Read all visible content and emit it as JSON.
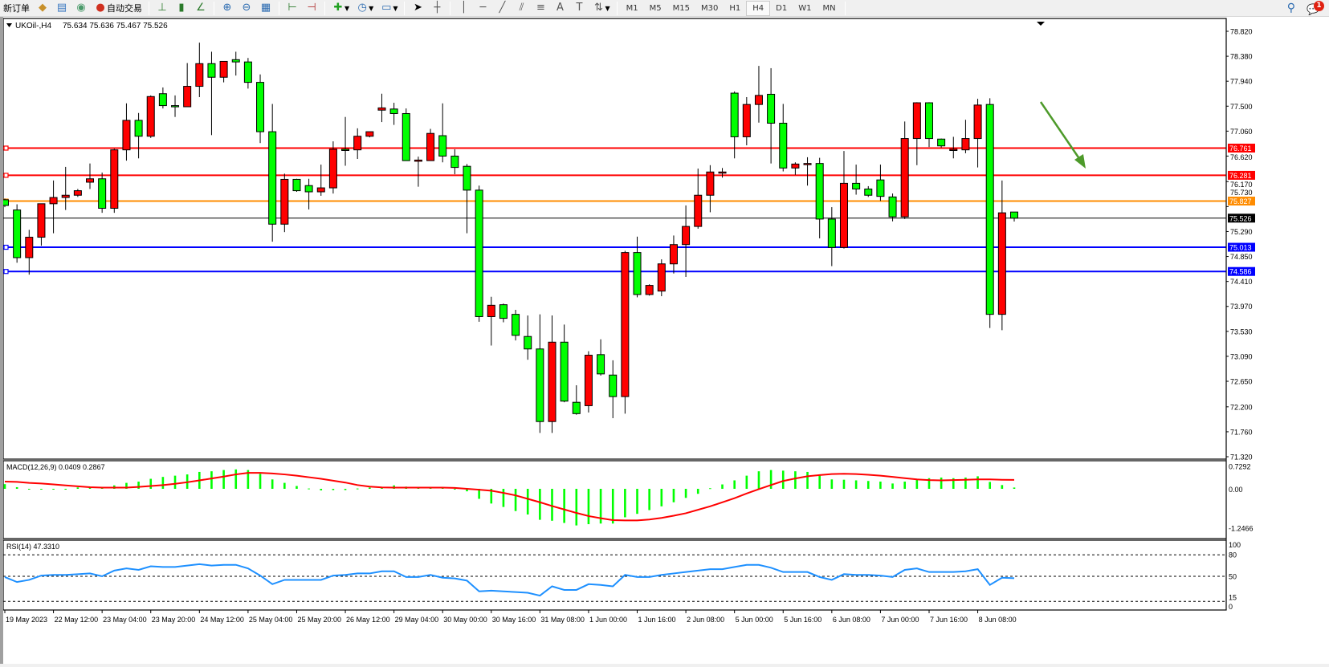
{
  "toolbar": {
    "items": [
      {
        "label": "新订单",
        "icon": "new-order-icon"
      },
      {
        "label": "",
        "icon": "history-center-icon"
      },
      {
        "label": "",
        "icon": "market-watch-icon"
      },
      {
        "label": "",
        "icon": "signals-icon"
      },
      {
        "label": "自动交易",
        "icon": "auto-trading-icon"
      }
    ],
    "tools": [
      "bar-chart-icon",
      "candlestick-icon",
      "line-chart-icon",
      "zoom-in-icon",
      "zoom-out-icon",
      "tile-windows-icon",
      "chart-shift-icon",
      "autoscroll-icon",
      "indicators-icon",
      "periods-icon",
      "templates-icon",
      "cursor-icon",
      "crosshair-icon",
      "vertical-line-icon",
      "horizontal-line-icon",
      "trendline-icon",
      "equidistant-channel-icon",
      "fibonacci-icon",
      "text-icon",
      "text-label-icon",
      "arrows-icon"
    ],
    "timeframes": [
      "M1",
      "M5",
      "M15",
      "M30",
      "H1",
      "H4",
      "D1",
      "W1",
      "MN"
    ],
    "active_timeframe": "H4",
    "notification_count": "1"
  },
  "chart": {
    "symbol_info": "UKOil-,H4",
    "ohlc_text": "75.634 75.636 75.467 75.526",
    "colors": {
      "up": "#ff0000",
      "down": "#00ff00",
      "macd_hist": "#00ff00",
      "macd_signal": "#ff0000",
      "rsi": "#1e90ff",
      "arrow": "#4d9a2a"
    },
    "price_axis": [
      "78.820",
      "78.380",
      "77.940",
      "77.500",
      "77.060",
      "76.620",
      "76.170",
      "75.730",
      "75.290",
      "74.850",
      "74.410",
      "73.970",
      "73.530",
      "73.090",
      "72.650",
      "72.200",
      "71.760",
      "71.320"
    ],
    "levels": [
      {
        "price": "76.761",
        "color": "#ff0000"
      },
      {
        "price": "76.281",
        "color": "#ff0000"
      },
      {
        "price": "75.827",
        "color": "#ff8c00"
      },
      {
        "price": "75.013",
        "color": "#0000ff"
      },
      {
        "price": "74.586",
        "color": "#0000ff"
      }
    ],
    "current_price": "75.526",
    "time_axis": [
      "19 May 2023",
      "22 May 12:00",
      "23 May 04:00",
      "23 May 20:00",
      "24 May 12:00",
      "25 May 04:00",
      "25 May 20:00",
      "26 May 12:00",
      "29 May 04:00",
      "30 May 00:00",
      "30 May 16:00",
      "31 May 08:00",
      "1 Jun 00:00",
      "1 Jun 16:00",
      "2 Jun 08:00",
      "5 Jun 00:00",
      "5 Jun 16:00",
      "6 Jun 08:00",
      "7 Jun 00:00",
      "7 Jun 16:00",
      "8 Jun 08:00"
    ]
  },
  "chart_data": {
    "type": "candlestick",
    "ylim": [
      71.32,
      78.82
    ],
    "ohlc": [
      [
        75.85,
        75.87,
        75.72,
        75.75
      ],
      [
        75.67,
        75.77,
        74.74,
        74.83
      ],
      [
        74.83,
        75.32,
        74.53,
        75.19
      ],
      [
        75.19,
        75.78,
        75.04,
        75.78
      ],
      [
        75.78,
        76.19,
        75.26,
        75.89
      ],
      [
        75.89,
        76.43,
        75.67,
        75.93
      ],
      [
        75.93,
        76.04,
        75.9,
        76.01
      ],
      [
        76.16,
        76.49,
        76.04,
        76.22
      ],
      [
        76.22,
        76.33,
        75.62,
        75.7
      ],
      [
        75.7,
        76.75,
        75.62,
        76.73
      ],
      [
        76.73,
        77.55,
        76.54,
        77.25
      ],
      [
        77.25,
        77.38,
        76.58,
        76.97
      ],
      [
        76.97,
        77.69,
        76.94,
        77.67
      ],
      [
        77.72,
        77.83,
        77.46,
        77.51
      ],
      [
        77.51,
        77.69,
        77.31,
        77.5
      ],
      [
        77.49,
        78.26,
        77.49,
        77.85
      ],
      [
        77.85,
        78.62,
        77.66,
        78.25
      ],
      [
        78.25,
        78.46,
        76.99,
        78.01
      ],
      [
        78.01,
        78.29,
        77.92,
        78.29
      ],
      [
        78.32,
        78.46,
        78.04,
        78.28
      ],
      [
        78.28,
        78.35,
        77.81,
        77.92
      ],
      [
        77.92,
        78.06,
        76.85,
        77.05
      ],
      [
        77.05,
        77.54,
        75.11,
        75.42
      ],
      [
        75.42,
        76.31,
        75.28,
        76.21
      ],
      [
        76.21,
        76.22,
        75.99,
        76.01
      ],
      [
        76.1,
        76.22,
        75.68,
        75.99
      ],
      [
        75.99,
        76.47,
        75.92,
        76.06
      ],
      [
        76.06,
        76.88,
        75.96,
        76.74
      ],
      [
        76.74,
        77.31,
        76.45,
        76.73
      ],
      [
        76.73,
        77.11,
        76.57,
        76.97
      ],
      [
        76.97,
        77.05,
        76.95,
        77.05
      ],
      [
        77.43,
        77.72,
        77.22,
        77.47
      ],
      [
        77.45,
        77.56,
        77.17,
        77.37
      ],
      [
        77.37,
        77.46,
        76.54,
        76.54
      ],
      [
        76.55,
        76.61,
        76.08,
        76.55
      ],
      [
        76.54,
        77.1,
        76.54,
        77.02
      ],
      [
        76.98,
        77.55,
        76.51,
        76.62
      ],
      [
        76.62,
        76.74,
        76.3,
        76.42
      ],
      [
        76.44,
        76.48,
        75.26,
        76.02
      ],
      [
        76.02,
        76.1,
        73.7,
        73.79
      ],
      [
        73.79,
        74.14,
        73.28,
        73.99
      ],
      [
        74.0,
        74.02,
        73.69,
        73.76
      ],
      [
        73.83,
        73.91,
        73.37,
        73.46
      ],
      [
        73.44,
        73.81,
        73.03,
        73.22
      ],
      [
        73.22,
        73.83,
        71.74,
        71.94
      ],
      [
        71.94,
        73.81,
        71.74,
        73.34
      ],
      [
        73.34,
        73.65,
        72.28,
        72.3
      ],
      [
        72.28,
        72.58,
        72.06,
        72.08
      ],
      [
        72.22,
        73.18,
        72.1,
        73.11
      ],
      [
        73.12,
        73.39,
        72.75,
        72.78
      ],
      [
        72.76,
        73.02,
        72.0,
        72.38
      ],
      [
        72.38,
        74.95,
        72.08,
        74.92
      ],
      [
        74.92,
        75.2,
        74.13,
        74.18
      ],
      [
        74.18,
        74.36,
        74.16,
        74.34
      ],
      [
        74.24,
        74.8,
        74.15,
        74.72
      ],
      [
        74.72,
        75.22,
        74.55,
        75.06
      ],
      [
        75.06,
        75.75,
        74.49,
        75.38
      ],
      [
        75.38,
        76.4,
        75.34,
        75.93
      ],
      [
        75.93,
        76.46,
        75.63,
        76.34
      ],
      [
        76.34,
        76.41,
        76.24,
        76.34
      ],
      [
        77.73,
        77.76,
        76.58,
        76.96
      ],
      [
        76.96,
        77.66,
        76.81,
        77.53
      ],
      [
        77.53,
        78.21,
        77.21,
        77.69
      ],
      [
        77.71,
        78.17,
        76.49,
        77.2
      ],
      [
        77.2,
        77.54,
        76.35,
        76.41
      ],
      [
        76.41,
        76.51,
        76.29,
        76.48
      ],
      [
        76.48,
        76.6,
        76.1,
        76.49
      ],
      [
        76.49,
        76.59,
        75.17,
        75.51
      ],
      [
        75.51,
        75.72,
        74.68,
        75.01
      ],
      [
        75.01,
        76.71,
        74.99,
        76.14
      ],
      [
        76.14,
        76.47,
        75.94,
        76.04
      ],
      [
        76.04,
        76.09,
        75.9,
        75.93
      ],
      [
        76.2,
        76.47,
        75.83,
        75.91
      ],
      [
        75.9,
        75.96,
        75.47,
        75.55
      ],
      [
        75.55,
        77.23,
        75.51,
        76.93
      ],
      [
        76.93,
        77.57,
        76.46,
        77.56
      ],
      [
        77.56,
        77.57,
        76.78,
        76.93
      ],
      [
        76.92,
        76.93,
        76.77,
        76.8
      ],
      [
        76.72,
        76.96,
        76.58,
        76.74
      ],
      [
        76.73,
        77.26,
        76.67,
        76.93
      ],
      [
        76.93,
        77.63,
        76.42,
        77.52
      ],
      [
        77.53,
        77.64,
        73.59,
        73.83
      ],
      [
        73.83,
        76.19,
        73.55,
        75.62
      ],
      [
        75.634,
        75.636,
        75.467,
        75.526
      ]
    ],
    "macd": {
      "label": "MACD(12,26,9) 0.0409 0.2867",
      "axis": [
        "0.7292",
        "0.00",
        "-1.2466"
      ],
      "ylim": [
        -1.2466,
        0.7292
      ],
      "histogram": [
        0.149,
        0.052,
        -0.01,
        -0.01,
        -0.01,
        -0.005,
        0.045,
        0.04,
        0.03,
        0.11,
        0.19,
        0.23,
        0.32,
        0.38,
        0.42,
        0.46,
        0.54,
        0.56,
        0.6,
        0.62,
        0.6,
        0.48,
        0.3,
        0.19,
        0.09,
        0.01,
        -0.05,
        -0.04,
        -0.04,
        0.01,
        0.04,
        0.06,
        0.11,
        0.07,
        0.04,
        0.04,
        0.04,
        -0.01,
        -0.08,
        -0.32,
        -0.47,
        -0.58,
        -0.71,
        -0.82,
        -0.99,
        -1.02,
        -1.09,
        -1.17,
        -1.13,
        -1.11,
        -1.11,
        -0.91,
        -0.8,
        -0.68,
        -0.56,
        -0.43,
        -0.29,
        -0.16,
        0.02,
        0.14,
        0.27,
        0.42,
        0.56,
        0.6,
        0.58,
        0.56,
        0.54,
        0.42,
        0.3,
        0.29,
        0.27,
        0.25,
        0.23,
        0.17,
        0.23,
        0.32,
        0.34,
        0.36,
        0.34,
        0.36,
        0.4,
        0.22,
        0.12,
        0.0409
      ],
      "signal": [
        0.23,
        0.22,
        0.19,
        0.17,
        0.14,
        0.11,
        0.08,
        0.05,
        0.04,
        0.04,
        0.04,
        0.06,
        0.09,
        0.12,
        0.16,
        0.21,
        0.27,
        0.33,
        0.39,
        0.46,
        0.51,
        0.51,
        0.49,
        0.46,
        0.42,
        0.37,
        0.32,
        0.26,
        0.2,
        0.12,
        0.07,
        0.045,
        0.04,
        0.04,
        0.04,
        0.04,
        0.04,
        0.03,
        0.0,
        -0.03,
        -0.06,
        -0.13,
        -0.21,
        -0.32,
        -0.43,
        -0.55,
        -0.66,
        -0.77,
        -0.87,
        -0.94,
        -1.0,
        -1.01,
        -1.01,
        -0.98,
        -0.93,
        -0.86,
        -0.78,
        -0.67,
        -0.56,
        -0.43,
        -0.3,
        -0.15,
        -0.01,
        0.12,
        0.25,
        0.33,
        0.4,
        0.44,
        0.47,
        0.48,
        0.47,
        0.45,
        0.42,
        0.38,
        0.34,
        0.3,
        0.28,
        0.27,
        0.28,
        0.29,
        0.3,
        0.3,
        0.29,
        0.2867
      ]
    },
    "rsi": {
      "label": "RSI(14) 47.3310",
      "axis": [
        "100",
        "80",
        "50",
        "15",
        "0"
      ],
      "levels": [
        80,
        50,
        15
      ],
      "ylim": [
        0,
        100
      ],
      "values": [
        49,
        42,
        45,
        51,
        52,
        52,
        53,
        54,
        50,
        58,
        61,
        59,
        64,
        63,
        63,
        65,
        67,
        65,
        66,
        66,
        61,
        51,
        39,
        45,
        45,
        45,
        45,
        51,
        52,
        54,
        54,
        57,
        57,
        49,
        49,
        52,
        48,
        47,
        44,
        29,
        30,
        29,
        28,
        27,
        23,
        36,
        31,
        31,
        39,
        38,
        36,
        52,
        49,
        49,
        52,
        54,
        56,
        58,
        60,
        60,
        63,
        66,
        66,
        62,
        56,
        56,
        56,
        49,
        45,
        53,
        52,
        52,
        51,
        49,
        59,
        61,
        56,
        56,
        56,
        57,
        60,
        38,
        48,
        47.331
      ]
    }
  }
}
